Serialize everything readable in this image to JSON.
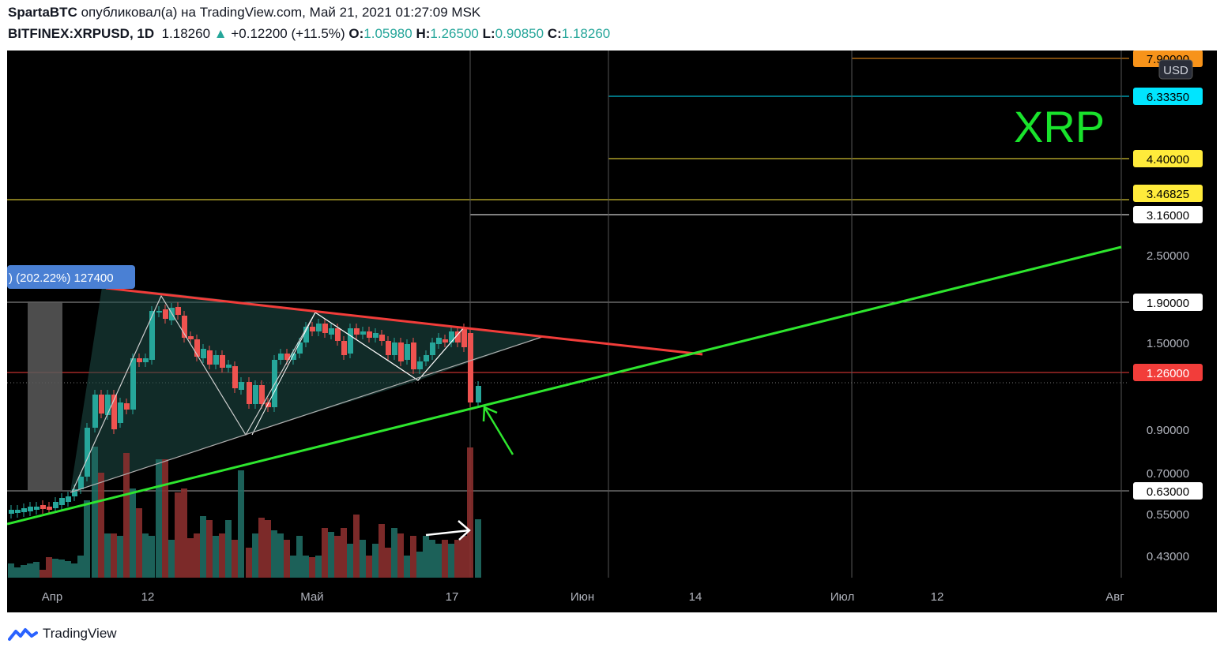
{
  "header": {
    "author": "SpartaBTC",
    "published_text": "опубликовал(а) на TradingView.com, Май 21, 2021 01:27:09 MSK",
    "symbol": "BITFINEX:XRPUSD, 1D",
    "last": "1.18260",
    "change": "+0.12200 (+11.5%)",
    "o_label": "O:",
    "o": "1.05980",
    "h_label": "H:",
    "h": "1.26500",
    "l_label": "L:",
    "l": "0.90850",
    "c_label": "C:",
    "c": "1.18260"
  },
  "chart": {
    "currency": "USD",
    "watermark": "XRP",
    "measure_label": ") (202.22%) 127400",
    "colors": {
      "up": "#26a69a",
      "down": "#ef5350",
      "resistance": "#f23d3a",
      "support": "#2ee62e",
      "xrp": "#19e32c"
    },
    "price_tags": [
      {
        "text": "7.90000",
        "bg": "#f7931a",
        "fg": "#000000"
      },
      {
        "text": "6.33350",
        "bg": "#00e5ff",
        "fg": "#000000"
      },
      {
        "text": "4.40000",
        "bg": "#ffeb3b",
        "fg": "#000000"
      },
      {
        "text": "3.46825",
        "bg": "#ffeb3b",
        "fg": "#000000"
      },
      {
        "text": "3.16000",
        "bg": "#ffffff",
        "fg": "#000000"
      },
      {
        "text": "1.90000",
        "bg": "#ffffff",
        "fg": "#000000"
      },
      {
        "text": "1.26000",
        "bg": "#f23d3a",
        "fg": "#ffffff"
      },
      {
        "text": "0.63000",
        "bg": "#ffffff",
        "fg": "#000000"
      }
    ],
    "axis_prices": [
      "2.50000",
      "1.50000",
      "0.90000",
      "0.70000",
      "0.55000",
      "0.43000"
    ],
    "time_labels": [
      "Апр",
      "12",
      "Май",
      "17",
      "Июн",
      "14",
      "Июл",
      "12",
      "Авг"
    ]
  },
  "footer": {
    "brand": "TradingView",
    "logo_icon": "tradingview-logo-icon"
  }
}
